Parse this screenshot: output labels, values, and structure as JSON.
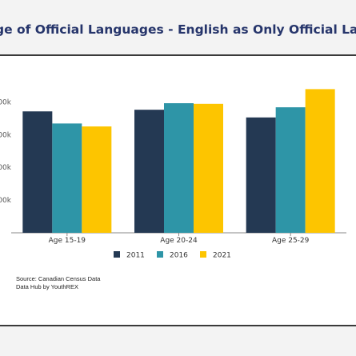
{
  "header": {
    "title": "ge of Official Languages - English as Only Official Lar"
  },
  "footer": {
    "source_line1": "Source: Canadian Census Data",
    "source_line2": "Data Hub by YouthREX"
  },
  "chart_data": {
    "type": "bar",
    "title": "",
    "xlabel": "",
    "ylabel": "",
    "categories": [
      "Age 15-19",
      "Age 20-24",
      "Age 25-29"
    ],
    "series": [
      {
        "name": "2011",
        "color": "#243953",
        "values": [
          742000,
          752000,
          705000
        ]
      },
      {
        "name": "2016",
        "color": "#2e95a7",
        "values": [
          668000,
          792000,
          767000
        ]
      },
      {
        "name": "2021",
        "color": "#fdc500",
        "values": [
          650000,
          788000,
          878000
        ]
      }
    ],
    "ylim": [
      0,
      880000
    ],
    "yticks": [
      0,
      200000,
      400000,
      600000,
      800000
    ],
    "ytick_labels": [
      "0",
      "00k",
      "00k",
      "00k",
      "00k"
    ],
    "grid": false,
    "legend_position": "bottom"
  }
}
